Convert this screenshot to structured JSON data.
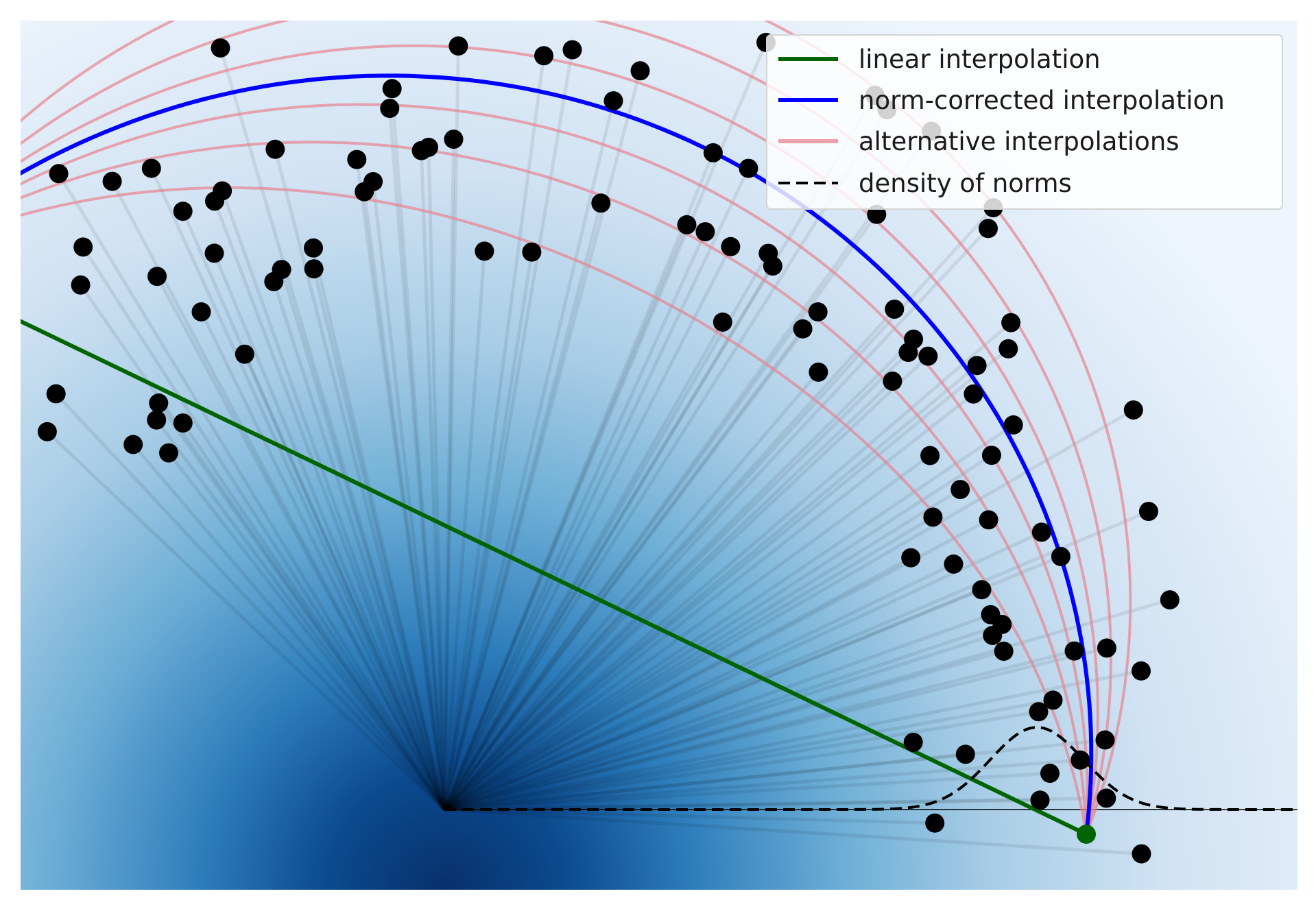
{
  "legend": {
    "items": [
      {
        "label": "linear interpolation",
        "color": "#006400",
        "style": "solid"
      },
      {
        "label": "norm-corrected interpolation",
        "color": "#0000ff",
        "style": "solid"
      },
      {
        "label": "alternative interpolations",
        "color": "#e8838e",
        "style": "solid"
      },
      {
        "label": "density of norms",
        "color": "#000000",
        "style": "dashed"
      }
    ]
  },
  "colors": {
    "background_dark": "#08306b",
    "background_light": "#f2f7fd",
    "endpoint": "#006400",
    "sample_point": "#000000",
    "ray": "#000000"
  },
  "diagram": {
    "origin": [
      0,
      0
    ],
    "endpoint_a": [
      -1.0,
      1.0
    ],
    "endpoint_b": [
      1.17,
      -0.045
    ],
    "sample_count": 113
  }
}
